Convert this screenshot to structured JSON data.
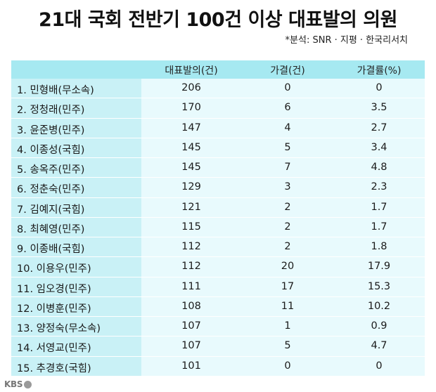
{
  "title": "21대 국회 전반기 100건 이상 대표발의 의원",
  "source": "*분석: SNR · 지평 · 한국리서치",
  "headers": {
    "bills": "대표발의(건)",
    "passed": "가결(건)",
    "rate": "가결률(%)"
  },
  "rows": [
    {
      "name": "1. 민형배(무소속)",
      "bills": "206",
      "passed": "0",
      "rate": "0"
    },
    {
      "name": "2. 정청래(민주)",
      "bills": "170",
      "passed": "6",
      "rate": "3.5"
    },
    {
      "name": "3. 윤준병(민주)",
      "bills": "147",
      "passed": "4",
      "rate": "2.7"
    },
    {
      "name": "4. 이종성(국힘)",
      "bills": "145",
      "passed": "5",
      "rate": "3.4"
    },
    {
      "name": "5. 송옥주(민주)",
      "bills": "145",
      "passed": "7",
      "rate": "4.8"
    },
    {
      "name": "6. 정춘숙(민주)",
      "bills": "129",
      "passed": "3",
      "rate": "2.3"
    },
    {
      "name": "7. 김예지(국힘)",
      "bills": "121",
      "passed": "2",
      "rate": "1.7"
    },
    {
      "name": "8. 최혜영(민주)",
      "bills": "115",
      "passed": "2",
      "rate": "1.7"
    },
    {
      "name": "9. 이종배(국힘)",
      "bills": "112",
      "passed": "2",
      "rate": "1.8"
    },
    {
      "name": "10. 이용우(민주)",
      "bills": "112",
      "passed": "20",
      "rate": "17.9"
    },
    {
      "name": "11. 임오경(민주)",
      "bills": "111",
      "passed": "17",
      "rate": "15.3"
    },
    {
      "name": "12. 이병훈(민주)",
      "bills": "108",
      "passed": "11",
      "rate": "10.2"
    },
    {
      "name": "13. 양정숙(무소속)",
      "bills": "107",
      "passed": "1",
      "rate": "0.9"
    },
    {
      "name": "14. 서영교(민주)",
      "bills": "107",
      "passed": "5",
      "rate": "4.7"
    },
    {
      "name": "15. 추경호(국힘)",
      "bills": "101",
      "passed": "0",
      "rate": "0"
    }
  ],
  "logo": "KBS",
  "colors": {
    "header_bg": "#a6e9f1",
    "name_col_bg": "#c9f1f6",
    "body_bg": "#e8fafd"
  }
}
